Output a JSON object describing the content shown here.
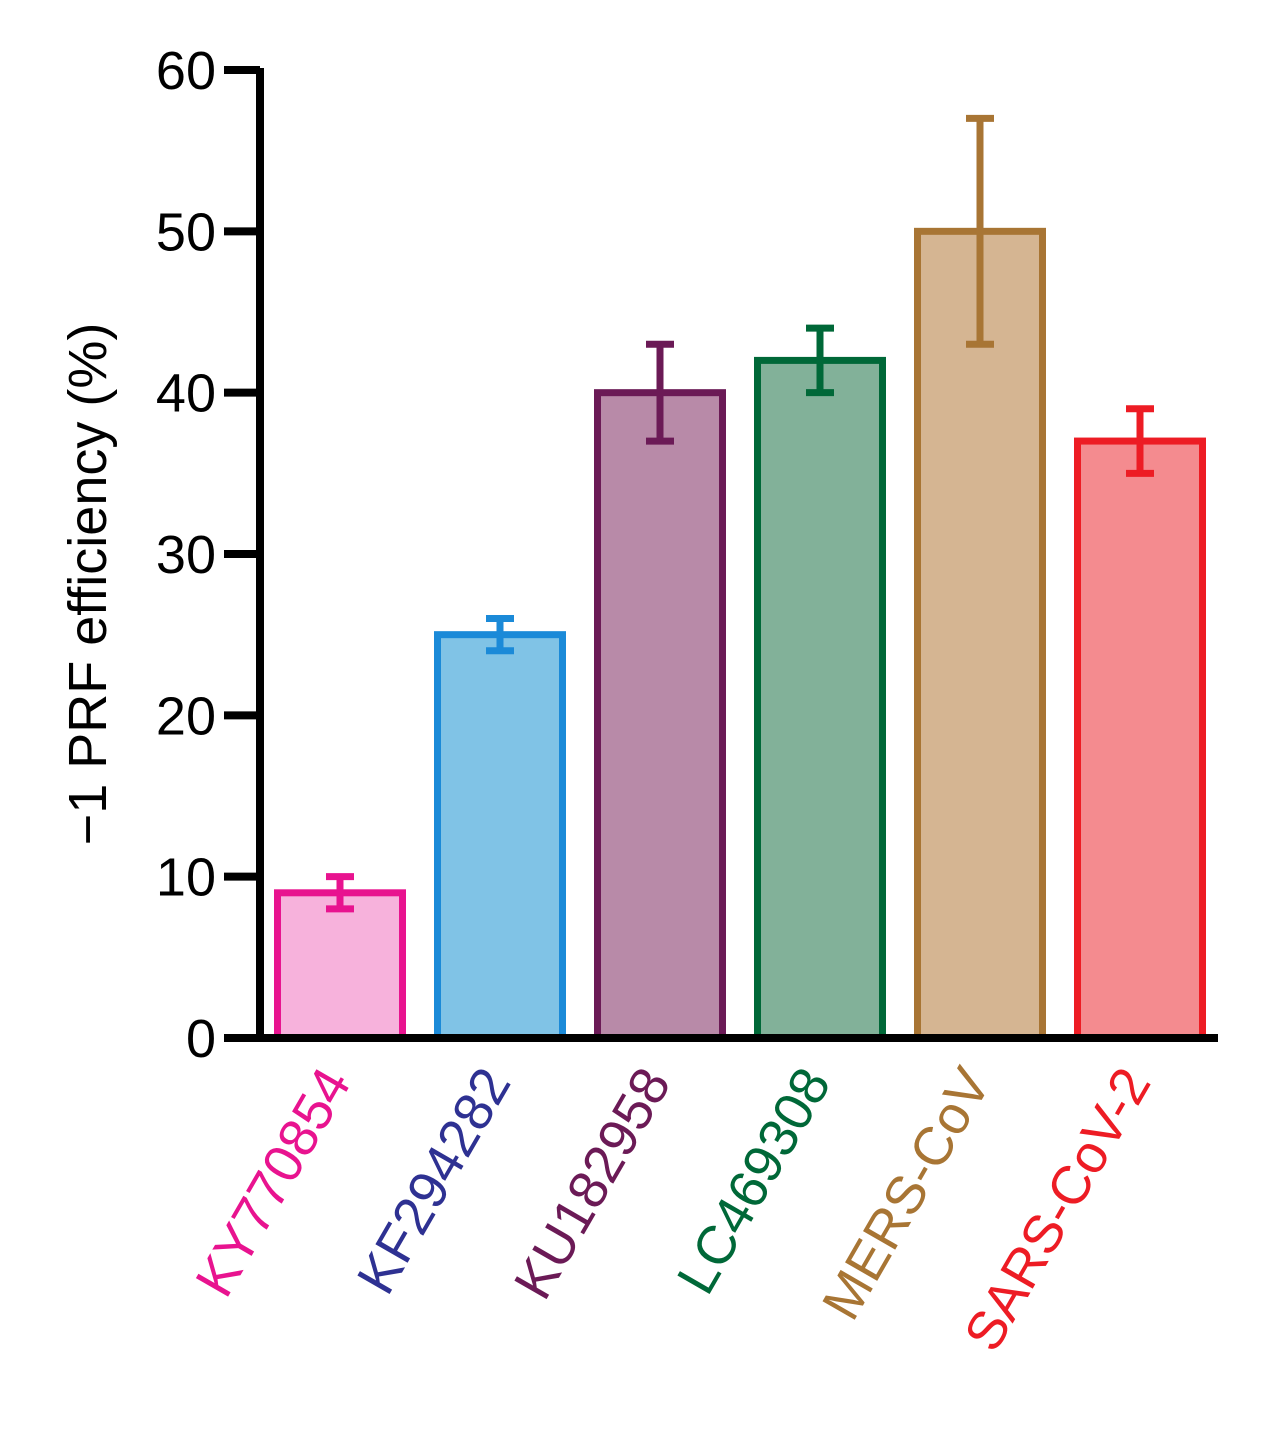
{
  "chart_data": {
    "type": "bar",
    "title": "",
    "xlabel": "",
    "ylabel": "−1 PRF efficiency (%)",
    "ylim": [
      0,
      60
    ],
    "yticks": [
      0,
      10,
      20,
      30,
      40,
      50,
      60
    ],
    "grid": false,
    "categories": [
      "KY770854",
      "KF294282",
      "KU182958",
      "LC469308",
      "MERS-CoV",
      "SARS-CoV-2"
    ],
    "values": [
      9,
      25,
      40,
      42,
      50,
      37
    ],
    "error_low": [
      8,
      24,
      37,
      40,
      43,
      35
    ],
    "error_high": [
      10,
      26,
      43,
      44,
      57,
      39
    ],
    "label_colors": [
      "#e8138f",
      "#2e3192",
      "#6b1a56",
      "#006838",
      "#a87534",
      "#ed1c24"
    ],
    "fill_colors": [
      "#f7b2dc",
      "#80c3e6",
      "#b88aa8",
      "#82b199",
      "#d5b592",
      "#f48b8f"
    ],
    "edge_colors": [
      "#e8138f",
      "#1b8ad8",
      "#6b1a56",
      "#006838",
      "#a87534",
      "#ed1c24"
    ]
  }
}
